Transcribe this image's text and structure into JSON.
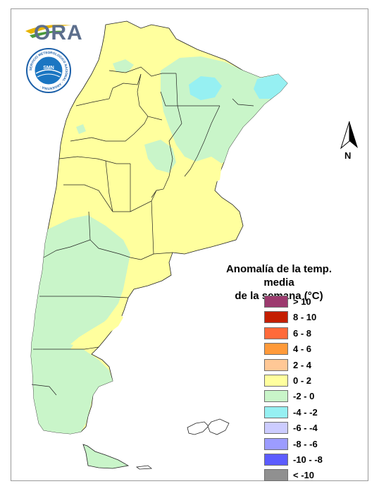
{
  "logo": {
    "text": "ORA"
  },
  "seal": {
    "ring_text": "SERVICIO METEOROLOGICO NACIONAL · ARGENTINA ·",
    "core_text": "SMN"
  },
  "north_arrow": {
    "label": "N"
  },
  "legend": {
    "title_line1": "Anomalía de la temp. media",
    "title_line2": "de la semana (°C)",
    "items": [
      {
        "label": "> 10",
        "color": "#9c3a6e"
      },
      {
        "label": "8 - 10",
        "color": "#c41e00"
      },
      {
        "label": "6 - 8",
        "color": "#ff6a3a"
      },
      {
        "label": "4 - 6",
        "color": "#ff9a3a"
      },
      {
        "label": "2 - 4",
        "color": "#ffc896"
      },
      {
        "label": "0 - 2",
        "color": "#ffff9e"
      },
      {
        "label": "-2 - 0",
        "color": "#c9f5c9"
      },
      {
        "label": "-4 - -2",
        "color": "#96f0f2"
      },
      {
        "label": "-6 - -4",
        "color": "#ccccff"
      },
      {
        "label": "-8 - -6",
        "color": "#9c9cff"
      },
      {
        "label": "-10 - -8",
        "color": "#5c5cff"
      },
      {
        "label": "< -10",
        "color": "#909090"
      }
    ]
  },
  "map_colors": {
    "anomaly_0_2": "#ffff9e",
    "anomaly_m2_0": "#c9f5c9",
    "anomaly_m4_m2": "#96f0f2"
  }
}
